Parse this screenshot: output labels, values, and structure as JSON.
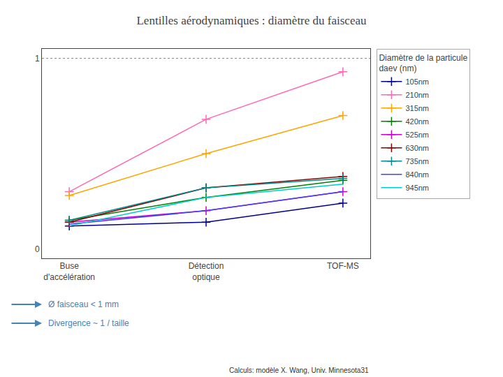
{
  "chart_data": {
    "type": "line",
    "title": "Lentilles aérodynamiques : diamètre du faisceau",
    "categories": [
      "Buse\nd'accélération",
      "Détection\noptique",
      "TOF-MS"
    ],
    "series": [
      {
        "name": "105nm",
        "color": "#00008B",
        "marker": "plus",
        "values": [
          0.12,
          0.14,
          0.24
        ]
      },
      {
        "name": "210nm",
        "color": "#FF69B4",
        "marker": "plus",
        "values": [
          0.3,
          0.68,
          0.93
        ]
      },
      {
        "name": "315nm",
        "color": "#FFA500",
        "marker": "plus",
        "values": [
          0.28,
          0.5,
          0.7
        ]
      },
      {
        "name": "420nm",
        "color": "#008000",
        "marker": "plus",
        "values": [
          0.15,
          0.27,
          0.36
        ]
      },
      {
        "name": "525nm",
        "color": "#CC00CC",
        "marker": "plus",
        "values": [
          0.14,
          0.2,
          0.3
        ]
      },
      {
        "name": "630nm",
        "color": "#8B0000",
        "marker": "plus",
        "values": [
          0.14,
          0.32,
          0.38
        ]
      },
      {
        "name": "735nm",
        "color": "#008B8B",
        "marker": "plus",
        "values": [
          0.15,
          0.32,
          0.37
        ]
      },
      {
        "name": "840nm",
        "color": "#4040FF",
        "marker": "none",
        "values": [
          0.13,
          0.2,
          0.3
        ]
      },
      {
        "name": "945nm",
        "color": "#00CCCC",
        "marker": "none",
        "values": [
          0.12,
          0.27,
          0.34
        ]
      }
    ],
    "ylim": [
      -0.05,
      1.05
    ],
    "yticks": [
      0,
      1
    ],
    "hline": 1.0,
    "grid": false,
    "legend": "right",
    "legend_title": "Diamètre de la particule",
    "legend_subtitle": "daev (nm)",
    "annotations": [
      "Ø faisceau < 1 mm",
      "Divergence ~ 1 / taille"
    ],
    "footnote": "Calculs: modèle X. Wang, Univ. Minnesota31"
  }
}
